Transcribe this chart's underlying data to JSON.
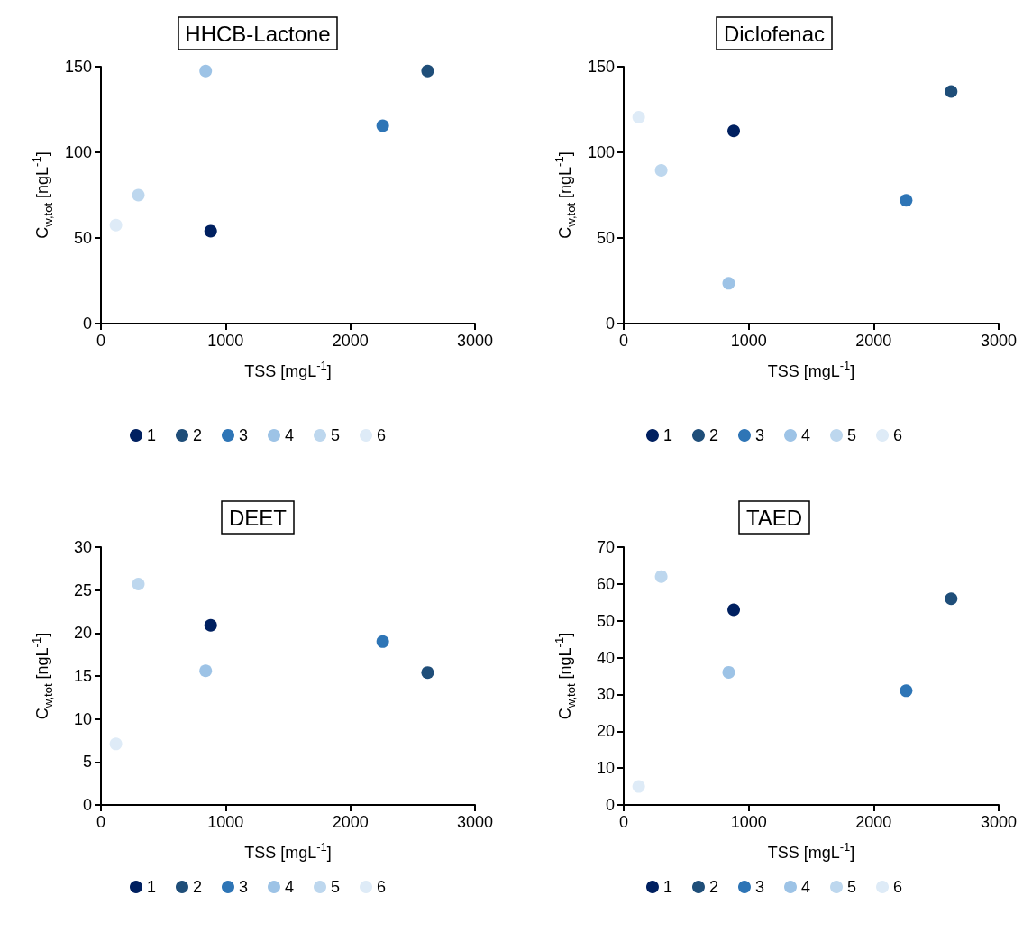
{
  "chart_data": [
    {
      "type": "scatter",
      "title": "HHCB-Lactone",
      "xlabel": "TSS [mgL$^{-1}$]",
      "ylabel": "C$_{w,tot}$ [ngL$^{-1}$]",
      "xlim": [
        0,
        3000
      ],
      "xticks": [
        0,
        1000,
        2000,
        3000
      ],
      "ylim": [
        0,
        150
      ],
      "yticks": [
        0,
        50,
        100,
        150
      ],
      "grid": false,
      "legend": "bottom",
      "marker": "circle",
      "series": [
        {
          "name": "1",
          "color": "#002060",
          "x": [
            880
          ],
          "values": [
            54
          ]
        },
        {
          "name": "2",
          "color": "#1f4e79",
          "x": [
            2620
          ],
          "values": [
            147.5
          ]
        },
        {
          "name": "3",
          "color": "#2e75b6",
          "x": [
            2260
          ],
          "values": [
            115.5
          ]
        },
        {
          "name": "4",
          "color": "#9dc3e6",
          "x": [
            840
          ],
          "values": [
            147.5
          ]
        },
        {
          "name": "5",
          "color": "#bdd7ee",
          "x": [
            300
          ],
          "values": [
            75
          ]
        },
        {
          "name": "6",
          "color": "#deebf7",
          "x": [
            120
          ],
          "values": [
            57.5
          ]
        }
      ]
    },
    {
      "type": "scatter",
      "title": "Diclofenac",
      "xlabel": "TSS [mgL$^{-1}$]",
      "ylabel": "C$_{w,tot}$ [ngL$^{-1}$]",
      "xlim": [
        0,
        3000
      ],
      "xticks": [
        0,
        1000,
        2000,
        3000
      ],
      "ylim": [
        0,
        150
      ],
      "yticks": [
        0,
        50,
        100,
        150
      ],
      "grid": false,
      "legend": "bottom",
      "marker": "circle",
      "series": [
        {
          "name": "1",
          "color": "#002060",
          "x": [
            880
          ],
          "values": [
            112.5
          ]
        },
        {
          "name": "2",
          "color": "#1f4e79",
          "x": [
            2620
          ],
          "values": [
            135.5
          ]
        },
        {
          "name": "3",
          "color": "#2e75b6",
          "x": [
            2260
          ],
          "values": [
            72
          ]
        },
        {
          "name": "4",
          "color": "#9dc3e6",
          "x": [
            840
          ],
          "values": [
            23.5
          ]
        },
        {
          "name": "5",
          "color": "#bdd7ee",
          "x": [
            300
          ],
          "values": [
            89.5
          ]
        },
        {
          "name": "6",
          "color": "#deebf7",
          "x": [
            120
          ],
          "values": [
            120.5
          ]
        }
      ]
    },
    {
      "type": "scatter",
      "title": "DEET",
      "xlabel": "TSS [mgL$^{-1}$]",
      "ylabel": "C$_{w,tot}$ [ngL$^{-1}$]",
      "xlim": [
        0,
        3000
      ],
      "xticks": [
        0,
        1000,
        2000,
        3000
      ],
      "ylim": [
        0,
        30
      ],
      "yticks": [
        0,
        5,
        10,
        15,
        20,
        25,
        30
      ],
      "grid": false,
      "legend": "bottom",
      "marker": "circle",
      "series": [
        {
          "name": "1",
          "color": "#002060",
          "x": [
            880
          ],
          "values": [
            20.9
          ]
        },
        {
          "name": "2",
          "color": "#1f4e79",
          "x": [
            2620
          ],
          "values": [
            15.4
          ]
        },
        {
          "name": "3",
          "color": "#2e75b6",
          "x": [
            2260
          ],
          "values": [
            19
          ]
        },
        {
          "name": "4",
          "color": "#9dc3e6",
          "x": [
            840
          ],
          "values": [
            15.6
          ]
        },
        {
          "name": "5",
          "color": "#bdd7ee",
          "x": [
            300
          ],
          "values": [
            25.7
          ]
        },
        {
          "name": "6",
          "color": "#deebf7",
          "x": [
            120
          ],
          "values": [
            7.1
          ]
        }
      ]
    },
    {
      "type": "scatter",
      "title": "TAED",
      "xlabel": "TSS [mgL$^{-1}$]",
      "ylabel": "C$_{w,tot}$ [ngL$^{-1}$]",
      "xlim": [
        0,
        3000
      ],
      "xticks": [
        0,
        1000,
        2000,
        3000
      ],
      "ylim": [
        0,
        70
      ],
      "yticks": [
        0,
        10,
        20,
        30,
        40,
        50,
        60,
        70
      ],
      "grid": false,
      "legend": "bottom",
      "marker": "circle",
      "series": [
        {
          "name": "1",
          "color": "#002060",
          "x": [
            880
          ],
          "values": [
            53
          ]
        },
        {
          "name": "2",
          "color": "#1f4e79",
          "x": [
            2620
          ],
          "values": [
            56
          ]
        },
        {
          "name": "3",
          "color": "#2e75b6",
          "x": [
            2260
          ],
          "values": [
            31
          ]
        },
        {
          "name": "4",
          "color": "#9dc3e6",
          "x": [
            840
          ],
          "values": [
            36
          ]
        },
        {
          "name": "5",
          "color": "#bdd7ee",
          "x": [
            300
          ],
          "values": [
            62
          ]
        },
        {
          "name": "6",
          "color": "#deebf7",
          "x": [
            120
          ],
          "values": [
            5
          ]
        }
      ]
    }
  ]
}
